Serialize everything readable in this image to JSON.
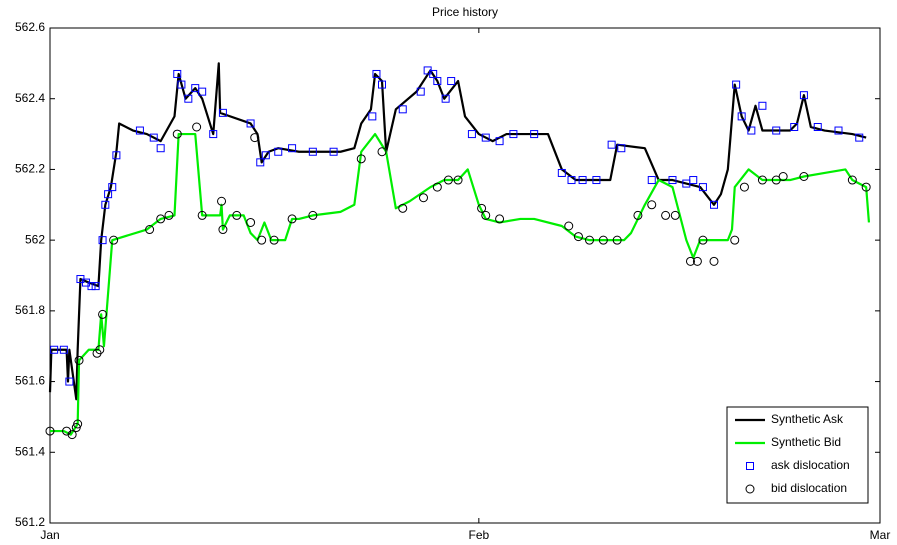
{
  "chart_data": {
    "type": "line",
    "title": "Price history",
    "xlim": [
      0,
      60
    ],
    "xticks": [
      {
        "value": 0,
        "label": "Jan"
      },
      {
        "value": 31,
        "label": "Feb"
      },
      {
        "value": 60,
        "label": "Mar"
      }
    ],
    "ylim": [
      561.2,
      562.6
    ],
    "yticks": [
      561.2,
      561.4,
      561.6,
      561.8,
      562,
      562.2,
      562.4,
      562.6
    ],
    "legend": "lower right",
    "series": [
      {
        "name": "Synthetic Ask",
        "color": "#000000",
        "style": "line",
        "x": [
          0,
          0.1,
          1.2,
          1.3,
          1.4,
          1.9,
          2.0,
          2.2,
          2.8,
          3.5,
          3.7,
          4.0,
          4.4,
          4.8,
          5.0,
          6.0,
          7.0,
          8.0,
          9.0,
          9.3,
          9.8,
          10.5,
          11.0,
          11.8,
          12.2,
          12.3,
          14.5,
          15.0,
          15.3,
          15.8,
          16.5,
          18.0,
          21.0,
          22.0,
          22.5,
          23.2,
          23.5,
          24.0,
          24.3,
          25.0,
          26.5,
          27.5,
          28.0,
          28.5,
          29.5,
          30.0,
          31.0,
          32.0,
          33.0,
          36.0,
          37.0,
          38.0,
          39.5,
          40.5,
          41.0,
          43.0,
          44.0,
          45.0,
          46.0,
          47.0,
          48.0,
          48.5,
          49.0,
          49.5,
          50.0,
          50.5,
          51.0,
          51.5,
          53.5,
          54.0,
          54.5,
          55.0,
          56.0,
          58.0,
          59.0
        ],
        "values": [
          561.57,
          561.69,
          561.69,
          561.6,
          561.69,
          561.55,
          561.69,
          561.89,
          561.88,
          561.87,
          562.0,
          562.1,
          562.15,
          562.25,
          562.33,
          562.31,
          562.3,
          562.28,
          562.35,
          562.47,
          562.4,
          562.43,
          562.4,
          562.3,
          562.5,
          562.36,
          562.33,
          562.3,
          562.22,
          562.25,
          562.26,
          562.25,
          562.25,
          562.26,
          562.33,
          562.37,
          562.47,
          562.45,
          562.25,
          562.37,
          562.42,
          562.48,
          562.45,
          562.4,
          562.45,
          562.35,
          562.3,
          562.28,
          562.3,
          562.3,
          562.2,
          562.17,
          562.17,
          562.17,
          562.27,
          562.26,
          562.17,
          562.17,
          562.16,
          562.15,
          562.1,
          562.13,
          562.2,
          562.44,
          562.35,
          562.31,
          562.38,
          562.31,
          562.31,
          562.33,
          562.41,
          562.32,
          562.31,
          562.3,
          562.29
        ]
      },
      {
        "name": "Synthetic Bid",
        "color": "#00ee00",
        "style": "line",
        "x": [
          0,
          1.0,
          1.5,
          2.0,
          2.1,
          2.8,
          3.5,
          3.7,
          3.9,
          4.5,
          7.0,
          8.0,
          9.0,
          9.3,
          10.5,
          11.0,
          12.3,
          12.4,
          12.5,
          13.0,
          14.0,
          14.5,
          15.0,
          15.5,
          16.0,
          17.0,
          17.5,
          18.0,
          19.0,
          21.0,
          22.0,
          22.5,
          23.5,
          24.3,
          25.0,
          26.0,
          27.5,
          28.5,
          29.5,
          30.2,
          31.0,
          31.5,
          32.5,
          34.0,
          35.0,
          37.0,
          38.0,
          39.0,
          40.0,
          41.5,
          42.0,
          43.0,
          44.0,
          45.0,
          46.0,
          46.5,
          47.0,
          49.0,
          49.3,
          49.5,
          50.5,
          51.5,
          53.5,
          54.5,
          56.0,
          57.5,
          58.0,
          59.0,
          59.2
        ],
        "values": [
          561.46,
          561.46,
          561.45,
          561.48,
          561.66,
          561.69,
          561.69,
          561.79,
          561.7,
          562.0,
          562.03,
          562.06,
          562.07,
          562.3,
          562.3,
          562.07,
          562.07,
          562.1,
          562.03,
          562.07,
          562.07,
          562.02,
          562.0,
          562.05,
          562.0,
          562.0,
          562.06,
          562.06,
          562.07,
          562.08,
          562.1,
          562.25,
          562.3,
          562.25,
          562.09,
          562.11,
          562.15,
          562.17,
          562.17,
          562.2,
          562.1,
          562.06,
          562.05,
          562.06,
          562.06,
          562.04,
          562.01,
          562.0,
          562.0,
          562.0,
          562.02,
          562.1,
          562.17,
          562.15,
          562.0,
          561.95,
          562.0,
          562.0,
          562.03,
          562.15,
          562.2,
          562.17,
          562.17,
          562.18,
          562.19,
          562.2,
          562.17,
          562.15,
          562.05
        ]
      },
      {
        "name": "ask dislocation",
        "color": "#0000ff",
        "style": "square",
        "x": [
          0.3,
          1.0,
          1.4,
          2.2,
          2.6,
          3.0,
          3.3,
          3.8,
          4.0,
          4.2,
          4.5,
          4.8,
          6.5,
          7.5,
          8.0,
          9.2,
          9.5,
          10.0,
          10.5,
          11.0,
          11.8,
          12.5,
          14.5,
          15.2,
          15.6,
          16.5,
          17.5,
          19.0,
          20.5,
          23.3,
          23.6,
          24.0,
          25.5,
          26.8,
          27.3,
          27.7,
          28.0,
          28.6,
          29.0,
          30.5,
          31.5,
          32.5,
          33.5,
          35.0,
          37.0,
          37.7,
          38.5,
          39.5,
          40.6,
          41.3,
          43.5,
          45.0,
          46.0,
          46.5,
          47.2,
          48.0,
          49.6,
          50.0,
          50.7,
          51.5,
          52.5,
          53.8,
          54.5,
          55.5,
          57.0,
          58.5
        ],
        "values": [
          561.69,
          561.69,
          561.6,
          561.89,
          561.88,
          561.87,
          561.87,
          562.0,
          562.1,
          562.13,
          562.15,
          562.24,
          562.31,
          562.29,
          562.26,
          562.47,
          562.44,
          562.4,
          562.43,
          562.42,
          562.3,
          562.36,
          562.33,
          562.22,
          562.24,
          562.25,
          562.26,
          562.25,
          562.25,
          562.35,
          562.47,
          562.44,
          562.37,
          562.42,
          562.48,
          562.47,
          562.45,
          562.4,
          562.45,
          562.3,
          562.29,
          562.28,
          562.3,
          562.3,
          562.19,
          562.17,
          562.17,
          562.17,
          562.27,
          562.26,
          562.17,
          562.17,
          562.16,
          562.17,
          562.15,
          562.1,
          562.44,
          562.35,
          562.31,
          562.38,
          562.31,
          562.32,
          562.41,
          562.32,
          562.31,
          562.29
        ]
      },
      {
        "name": "bid dislocation",
        "color": "#000000",
        "style": "circle",
        "x": [
          0,
          1.2,
          1.6,
          1.9,
          2.0,
          2.1,
          3.4,
          3.6,
          3.8,
          4.6,
          7.2,
          8.0,
          8.6,
          9.2,
          10.6,
          11.0,
          12.4,
          12.5,
          13.5,
          14.5,
          14.8,
          15.3,
          16.2,
          17.5,
          19.0,
          22.5,
          24.0,
          25.5,
          27.0,
          28.0,
          28.8,
          29.5,
          31.2,
          31.5,
          32.5,
          37.5,
          38.2,
          39.0,
          40.0,
          41.0,
          42.5,
          43.5,
          44.5,
          45.2,
          46.3,
          46.8,
          47.2,
          48.0,
          49.5,
          50.2,
          51.5,
          52.5,
          53.0,
          54.5,
          58.0,
          59.0
        ],
        "values": [
          561.46,
          561.46,
          561.45,
          561.47,
          561.48,
          561.66,
          561.68,
          561.69,
          561.79,
          562.0,
          562.03,
          562.06,
          562.07,
          562.3,
          562.32,
          562.07,
          562.11,
          562.03,
          562.07,
          562.05,
          562.29,
          562.0,
          562.0,
          562.06,
          562.07,
          562.23,
          562.25,
          562.09,
          562.12,
          562.15,
          562.17,
          562.17,
          562.09,
          562.07,
          562.06,
          562.04,
          562.01,
          562.0,
          562.0,
          562.0,
          562.07,
          562.1,
          562.07,
          562.07,
          561.94,
          561.94,
          562.0,
          561.94,
          562.0,
          562.15,
          562.17,
          562.17,
          562.18,
          562.18,
          562.17,
          562.15
        ]
      }
    ]
  }
}
